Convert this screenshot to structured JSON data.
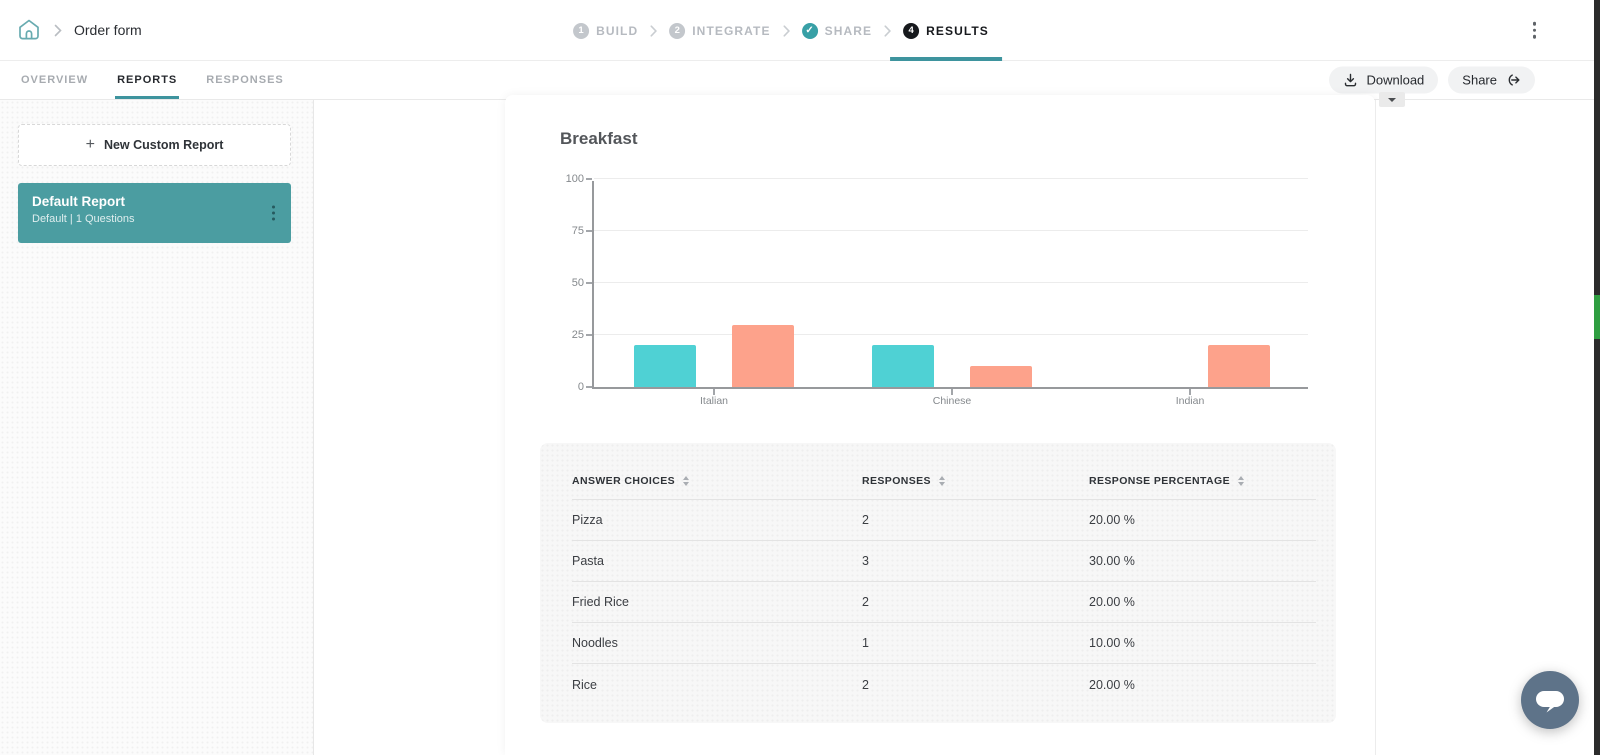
{
  "app": {
    "breadcrumb": {
      "title": "Order form"
    },
    "stepper": [
      {
        "badge": "1",
        "label": "BUILD",
        "state": "upcoming"
      },
      {
        "badge": "2",
        "label": "INTEGRATE",
        "state": "upcoming"
      },
      {
        "badge": "check",
        "label": "SHARE",
        "state": "done"
      },
      {
        "badge": "4",
        "label": "RESULTS",
        "state": "active"
      }
    ]
  },
  "tabs": [
    {
      "label": "OVERVIEW",
      "active": false
    },
    {
      "label": "REPORTS",
      "active": true
    },
    {
      "label": "RESPONSES",
      "active": false
    }
  ],
  "toolbar": {
    "download_label": "Download",
    "share_label": "Share"
  },
  "sidebar": {
    "new_report_label": "New Custom Report",
    "reports": [
      {
        "title": "Default Report",
        "subtitle": "Default | 1 Questions"
      }
    ]
  },
  "report": {
    "question_title": "Breakfast",
    "chart_data": {
      "type": "bar",
      "title": "Breakfast",
      "categories": [
        "Italian",
        "Chinese",
        "Indian"
      ],
      "ylim": [
        0,
        100
      ],
      "yticks": [
        0,
        25,
        50,
        75,
        100
      ],
      "grid": true,
      "legend": "none",
      "colors": {
        "teal": "#4fd1d4",
        "salmon": "#fda28b"
      },
      "bars": [
        {
          "answer": "Pizza",
          "category": "Italian",
          "group": 0,
          "slot": 0,
          "value": 20,
          "color": "teal"
        },
        {
          "answer": "Pasta",
          "category": "Italian",
          "group": 0,
          "slot": 1,
          "value": 30,
          "color": "salmon"
        },
        {
          "answer": "Fried Rice",
          "category": "Chinese",
          "group": 1,
          "slot": 0,
          "value": 20,
          "color": "teal"
        },
        {
          "answer": "Noodles",
          "category": "Chinese",
          "group": 1,
          "slot": 1,
          "value": 10,
          "color": "salmon"
        },
        {
          "answer": "Rice",
          "category": "Indian",
          "group": 2,
          "slot": 1,
          "value": 20,
          "color": "salmon"
        }
      ]
    },
    "table": {
      "headers": [
        "ANSWER CHOICES",
        "RESPONSES",
        "RESPONSE PERCENTAGE"
      ],
      "rows": [
        [
          "Pizza",
          "2",
          "20.00 %"
        ],
        [
          "Pasta",
          "3",
          "30.00 %"
        ],
        [
          "Fried Rice",
          "2",
          "20.00 %"
        ],
        [
          "Noodles",
          "1",
          "10.00 %"
        ],
        [
          "Rice",
          "2",
          "20.00 %"
        ]
      ]
    }
  },
  "colors": {
    "accent": "#3e949e",
    "report_card": "#4b9da1",
    "chat_button": "#5e7389",
    "scroll_marker": "#2f9e41"
  }
}
